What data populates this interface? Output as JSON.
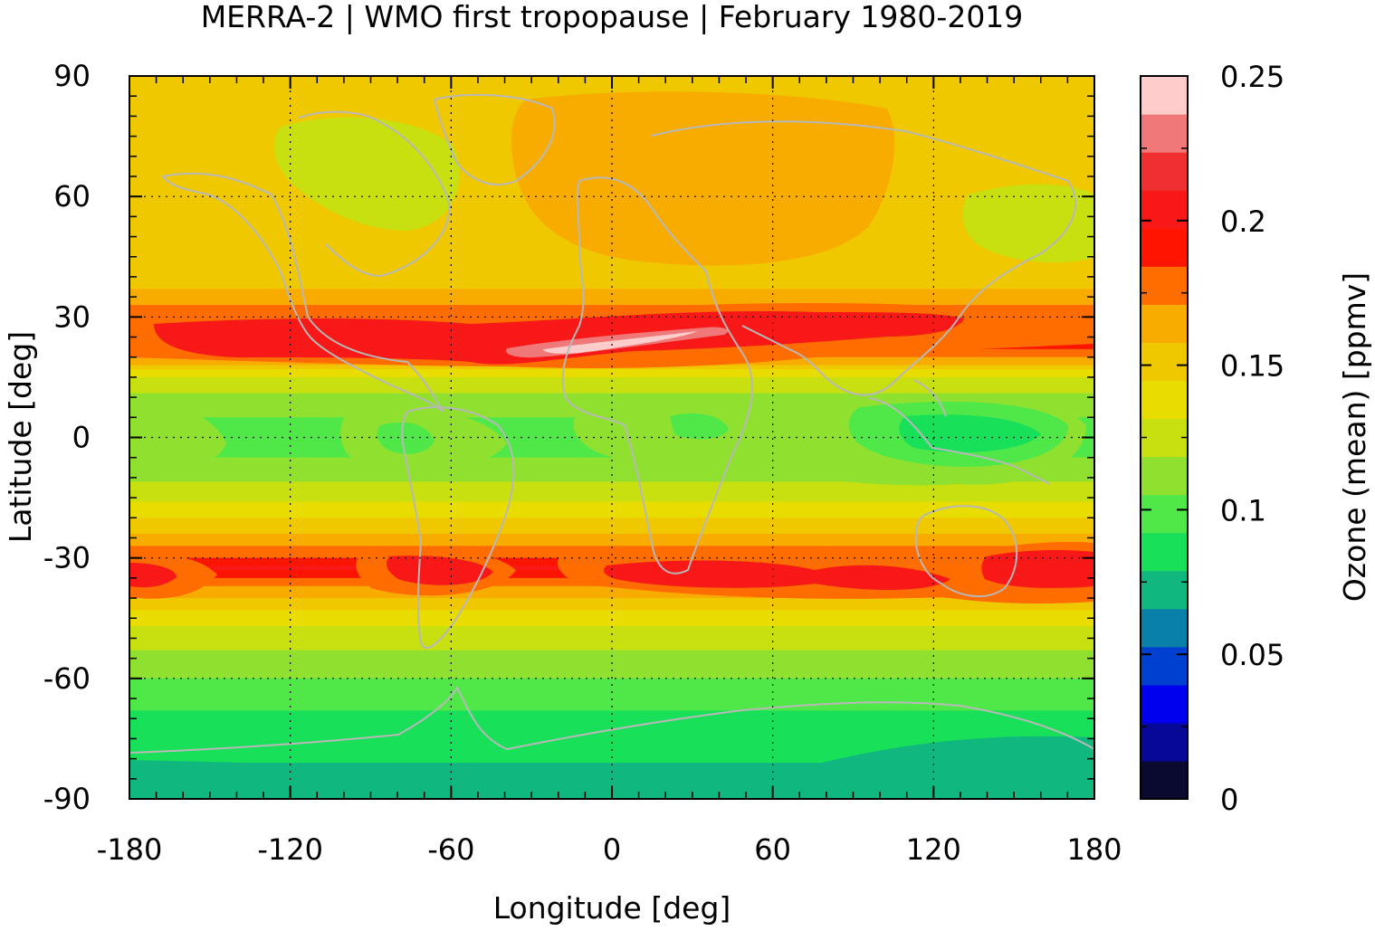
{
  "chart_data": {
    "type": "heatmap",
    "title": "MERRA-2 | WMO first tropopause | February 1980-2019",
    "xlabel": "Longitude [deg]",
    "ylabel": "Latitude [deg]",
    "colorbar_label": "Ozone (mean) [ppmv]",
    "xlim": [
      -180,
      180
    ],
    "ylim": [
      -90,
      90
    ],
    "x_ticks": [
      -180,
      -120,
      -60,
      0,
      60,
      120,
      180
    ],
    "y_ticks": [
      90,
      60,
      30,
      0,
      -30,
      -60,
      -90
    ],
    "x_tick_labels": [
      "-180",
      "-120",
      "-60",
      "0",
      "60",
      "120",
      "180"
    ],
    "y_tick_labels": [
      "90",
      "60",
      "30",
      "0",
      "-30",
      "-60",
      "-90"
    ],
    "grid": true,
    "colorbar": {
      "range": [
        0,
        0.25
      ],
      "ticks": [
        0,
        0.05,
        0.1,
        0.15,
        0.2,
        0.25
      ],
      "tick_labels": [
        "0",
        "0.05",
        "0.1",
        "0.15",
        "0.2",
        "0.25"
      ],
      "colors": [
        "#0a0a30",
        "#080898",
        "#0000ee",
        "#0040d0",
        "#0880a8",
        "#10b880",
        "#18e058",
        "#50e848",
        "#90e030",
        "#c8e010",
        "#e8dc00",
        "#f0c800",
        "#f8ac00",
        "#ff6c00",
        "#ff1400",
        "#f81818",
        "#f03030",
        "#f07878",
        "#ffcccc"
      ]
    },
    "zonal_profile": {
      "lat": [
        90,
        80,
        70,
        60,
        50,
        40,
        32,
        28,
        24,
        20,
        15,
        10,
        5,
        0,
        -5,
        -10,
        -15,
        -20,
        -25,
        -30,
        -33,
        -36,
        -40,
        -45,
        -50,
        -55,
        -60,
        -65,
        -70,
        -75,
        -80,
        -85,
        -90
      ],
      "value": [
        0.15,
        0.155,
        0.15,
        0.145,
        0.145,
        0.15,
        0.175,
        0.205,
        0.2,
        0.17,
        0.13,
        0.115,
        0.105,
        0.1,
        0.105,
        0.115,
        0.13,
        0.145,
        0.16,
        0.185,
        0.2,
        0.18,
        0.155,
        0.135,
        0.125,
        0.115,
        0.105,
        0.095,
        0.09,
        0.085,
        0.08,
        0.075,
        0.07
      ]
    }
  }
}
